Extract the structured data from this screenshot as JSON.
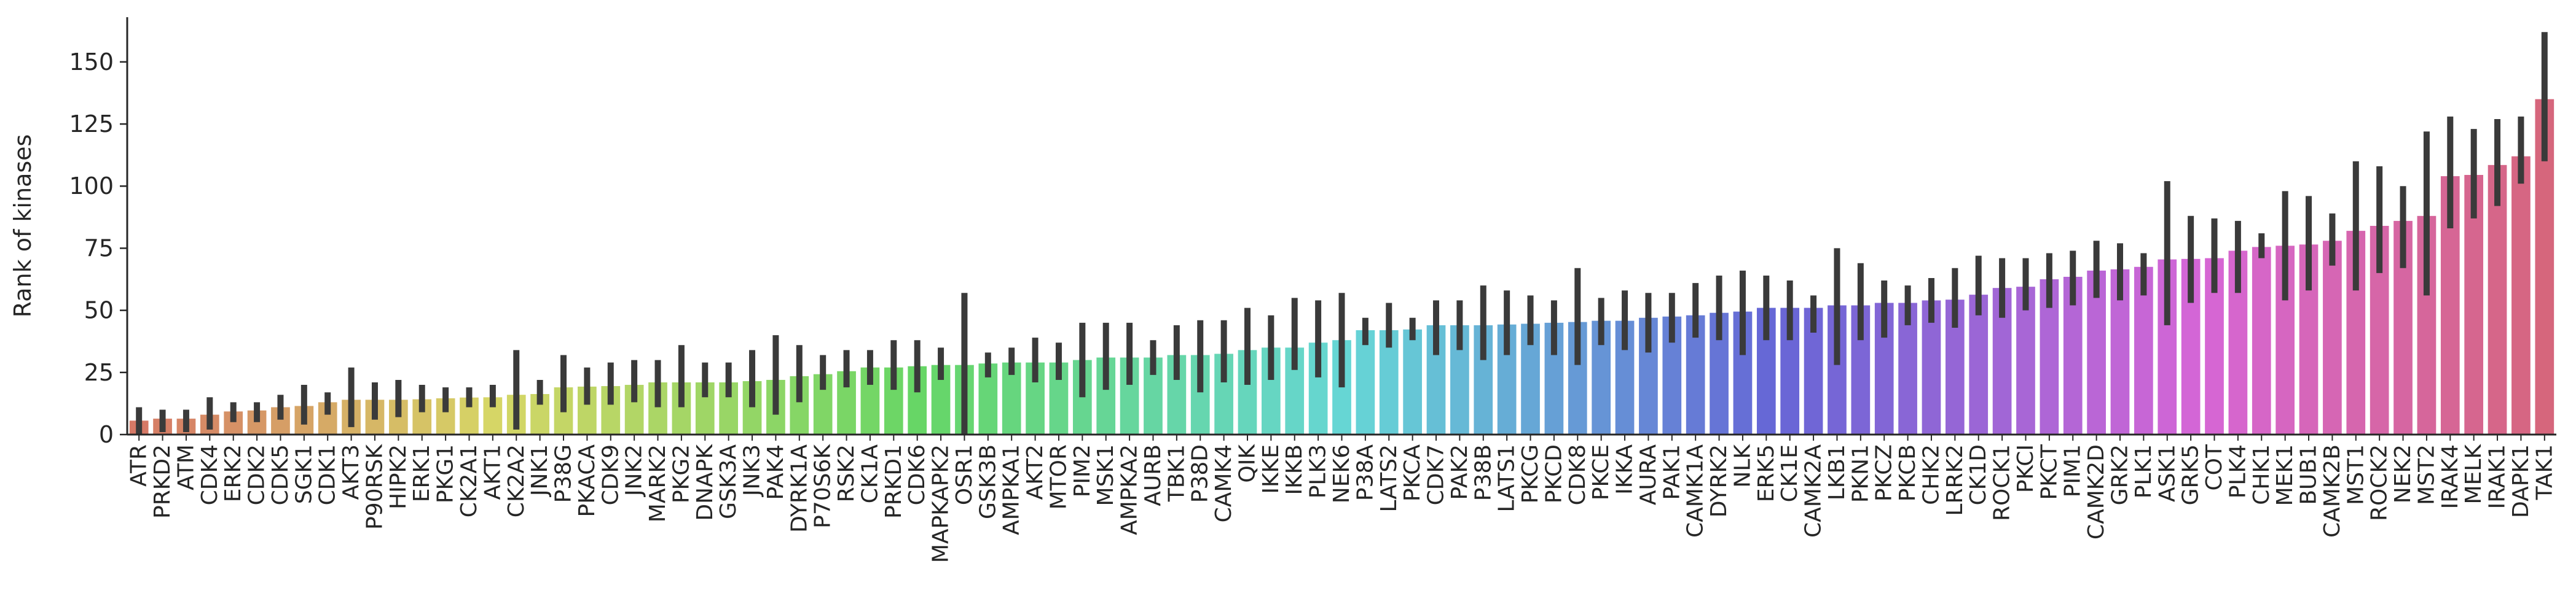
{
  "chart_data": {
    "type": "bar",
    "title": "",
    "xlabel": "",
    "ylabel": "Rank of kinases",
    "ylim": [
      0,
      168
    ],
    "yticks": [
      0,
      25,
      50,
      75,
      100,
      125,
      150
    ],
    "grid": false,
    "legend": "none",
    "error_bar_color": "#3a3a3a",
    "categories": [
      "ATR",
      "PRKD2",
      "ATM",
      "CDK4",
      "ERK2",
      "CDK2",
      "CDK5",
      "SGK1",
      "CDK1",
      "AKT3",
      "P90RSK",
      "HIPK2",
      "ERK1",
      "PKG1",
      "CK2A1",
      "AKT1",
      "CK2A2",
      "JNK1",
      "P38G",
      "PKACA",
      "CDK9",
      "JNK2",
      "MARK2",
      "PKG2",
      "DNAPK",
      "GSK3A",
      "JNK3",
      "PAK4",
      "DYRK1A",
      "P70S6K",
      "RSK2",
      "CK1A",
      "PRKD1",
      "CDK6",
      "MAPKAPK2",
      "OSR1",
      "GSK3B",
      "AMPKA1",
      "AKT2",
      "MTOR",
      "PIM2",
      "MSK1",
      "AMPKA2",
      "AURB",
      "TBK1",
      "P38D",
      "CAMK4",
      "QIK",
      "IKKE",
      "IKKB",
      "PLK3",
      "NEK6",
      "P38A",
      "LATS2",
      "PKCA",
      "CDK7",
      "PAK2",
      "P38B",
      "LATS1",
      "PKCG",
      "PKCD",
      "CDK8",
      "PKCE",
      "IKKA",
      "AURA",
      "PAK1",
      "CAMK1A",
      "DYRK2",
      "NLK",
      "ERK5",
      "CK1E",
      "CAMK2A",
      "LKB1",
      "PKN1",
      "PKCZ",
      "PKCB",
      "CHK2",
      "LRRK2",
      "CK1D",
      "ROCK1",
      "PKCI",
      "PKCT",
      "PIM1",
      "CAMK2D",
      "GRK2",
      "PLK1",
      "ASK1",
      "GRK5",
      "COT",
      "PLK4",
      "CHK1",
      "MEK1",
      "BUB1",
      "CAMK2B",
      "MST1",
      "ROCK2",
      "NEK2",
      "MST2",
      "IRAK4",
      "MELK",
      "IRAK1",
      "DAPK1",
      "TAK1"
    ],
    "values": [
      5.6,
      6.4,
      6.4,
      8,
      9.3,
      9.7,
      11,
      11.5,
      13,
      14,
      14,
      14,
      14.2,
      14.6,
      14.9,
      15,
      16,
      16.3,
      19,
      19.3,
      19.5,
      20,
      21,
      21,
      21,
      21,
      21.5,
      22,
      23.5,
      24.3,
      25.5,
      27,
      27,
      27.5,
      28,
      28,
      28.6,
      29,
      29,
      29,
      30,
      31,
      31,
      31,
      32,
      32,
      32.5,
      34,
      35,
      35,
      37,
      38,
      42,
      42,
      42.3,
      44,
      44,
      44,
      44.3,
      44.6,
      45,
      45.3,
      45.8,
      45.8,
      47,
      47.5,
      48,
      49,
      49.5,
      51,
      51,
      51,
      52,
      52,
      53,
      53,
      54,
      54.3,
      56.3,
      59,
      59.5,
      62.5,
      63.5,
      66,
      66.5,
      67.5,
      70.5,
      70.7,
      71,
      74,
      75.5,
      76,
      76.5,
      78,
      82,
      84,
      86,
      88,
      104,
      104.5,
      108.5,
      112,
      135
    ],
    "ci_low": [
      0,
      1,
      1,
      2,
      5,
      5,
      6,
      4,
      8,
      3,
      6,
      7,
      9,
      9,
      11,
      11,
      2,
      12,
      9,
      12,
      12,
      13,
      11,
      11,
      15,
      15,
      11,
      8,
      13,
      18,
      19,
      20,
      18,
      17,
      22,
      0,
      23,
      24,
      21,
      22,
      15,
      18,
      20,
      24,
      22,
      17,
      21,
      20,
      22,
      26,
      23,
      19,
      36,
      35,
      38,
      32,
      34,
      30,
      32,
      36,
      32,
      28,
      36,
      34,
      33,
      37,
      39,
      38,
      32,
      38,
      38,
      41,
      28,
      38,
      39,
      44,
      45,
      43,
      48,
      47,
      50,
      51,
      52,
      55,
      54,
      56,
      44,
      53,
      57,
      57,
      71,
      54,
      58,
      68,
      58,
      65,
      67,
      56,
      83,
      87,
      92,
      101,
      110
    ],
    "ci_high": [
      11,
      10,
      10,
      15,
      13,
      13,
      16,
      20,
      17,
      27,
      21,
      22,
      20,
      19,
      19,
      20,
      34,
      22,
      32,
      27,
      29,
      30,
      30,
      36,
      29,
      29,
      34,
      40,
      36,
      32,
      34,
      34,
      38,
      38,
      35,
      57,
      33,
      35,
      39,
      37,
      45,
      45,
      45,
      38,
      44,
      46,
      46,
      51,
      48,
      55,
      54,
      57,
      47,
      53,
      47,
      54,
      54,
      60,
      58,
      56,
      54,
      67,
      55,
      58,
      57,
      57,
      61,
      64,
      66,
      64,
      62,
      56,
      75,
      69,
      62,
      60,
      63,
      67,
      72,
      71,
      71,
      73,
      74,
      78,
      77,
      73,
      102,
      88,
      87,
      86,
      81,
      98,
      96,
      89,
      110,
      108,
      100,
      122,
      128,
      123,
      127,
      128,
      162
    ]
  }
}
